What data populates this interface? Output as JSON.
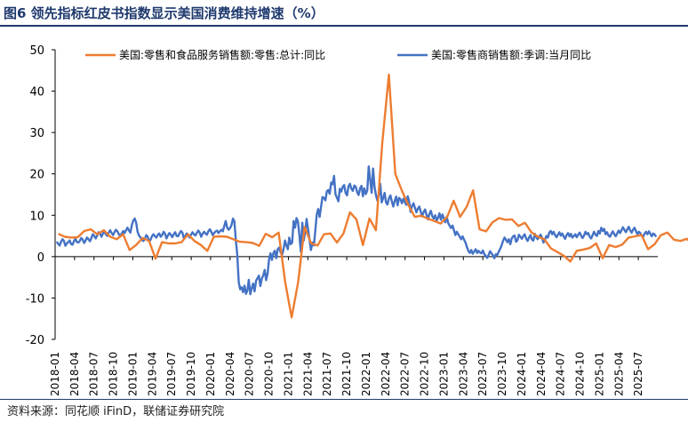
{
  "figure": {
    "title": "图6  领先指标红皮书指数显示美国消费维持增速（%）",
    "source": "资料来源：同花顺 iFinD，联储证券研究院"
  },
  "chart_data": {
    "type": "line",
    "ylim": [
      -20,
      50
    ],
    "yticks": [
      -20,
      -10,
      0,
      10,
      20,
      30,
      40,
      50
    ],
    "grid": false,
    "legend_position": "top",
    "start_month": "2018-01",
    "x_tick_labels": [
      "2018-01",
      "2018-04",
      "2018-07",
      "2018-10",
      "2019-01",
      "2019-04",
      "2019-07",
      "2019-10",
      "2020-01",
      "2020-04",
      "2020-07",
      "2020-10",
      "2021-01",
      "2021-04",
      "2021-07",
      "2021-10",
      "2022-01",
      "2022-04",
      "2022-07",
      "2022-10",
      "2023-01",
      "2023-04",
      "2023-07",
      "2023-10",
      "2024-01",
      "2024-04",
      "2024-07",
      "2024-10",
      "2025-01",
      "2025-04",
      "2025-07"
    ],
    "series": [
      {
        "name": "美国:零售和食品服务销售额:零售:总计:同比",
        "color": "#ed7d31",
        "frequency": "monthly",
        "values": [
          5.5,
          4.8,
          4.6,
          4.7,
          6.2,
          6.6,
          5.4,
          6.4,
          4.8,
          4.2,
          5.4,
          1.6,
          2.8,
          4.5,
          3.8,
          -0.5,
          3.5,
          3.2,
          3.2,
          3.5,
          5.4,
          3.8,
          2.8,
          1.4,
          4.8,
          4.9,
          4.8,
          4.2,
          3.6,
          3.5,
          3.3,
          2.6,
          5.5,
          4.7,
          5.8,
          -6.1,
          -14.7,
          -6.2,
          7.2,
          3.2,
          2.7,
          5.4,
          5.6,
          3.4,
          5.6,
          10.7,
          9.0,
          2.8,
          9.2,
          6.4,
          27.8,
          44.0,
          20.0,
          16.0,
          12.5,
          9.6,
          9.9,
          9.2,
          8.6,
          8.0,
          9.6,
          13.5,
          9.6,
          12.0,
          16.0,
          6.6,
          6.1,
          8.3,
          9.3,
          8.9,
          9.0,
          7.4,
          8.2,
          5.9,
          4.8,
          4.2,
          2.0,
          1.1,
          0.2,
          -1.2,
          1.4,
          1.7,
          2.1,
          3.2,
          -0.4,
          2.8,
          2.3,
          2.9,
          4.6,
          4.9,
          5.2,
          1.8,
          3.0,
          5.2,
          5.8,
          4.1,
          3.8,
          4.3,
          2.8,
          0.9,
          1.6,
          4.3,
          5.2,
          4.8,
          4.5,
          -0.1,
          4.5,
          3.6,
          5.1,
          2.4,
          4.1,
          5.8,
          4.7,
          5.2,
          4.8,
          3.8,
          4.3,
          3.6,
          5.0,
          2.0,
          1.8,
          3.0
        ]
      },
      {
        "name": "美国:零售商销售额:季调:当月同比",
        "color": "#4472c4",
        "frequency": "weekly",
        "values": [
          3.6,
          3.1,
          2.7,
          3.6,
          4.2,
          3.8,
          2.6,
          3.2,
          3.5,
          3.9,
          3.0,
          2.9,
          3.8,
          4.3,
          3.5,
          3.4,
          3.8,
          4.5,
          4.1,
          3.3,
          3.9,
          4.6,
          4.2,
          3.7,
          4.5,
          5.4,
          5.0,
          4.4,
          5.1,
          5.9,
          5.5,
          4.8,
          5.6,
          6.0,
          5.4,
          5.0,
          5.8,
          6.4,
          5.7,
          5.2,
          5.9,
          6.5,
          6.1,
          5.4,
          4.9,
          5.6,
          6.2,
          5.7,
          6.4,
          7.0,
          6.3,
          5.8,
          7.6,
          8.7,
          9.2,
          8.2,
          6.0,
          5.1,
          4.6,
          4.0,
          3.8,
          4.3,
          5.2,
          4.8,
          3.6,
          4.1,
          5.0,
          5.4,
          4.9,
          4.6,
          5.3,
          5.6,
          4.8,
          5.2,
          6.0,
          5.5,
          4.4,
          5.1,
          5.7,
          5.3,
          4.7,
          5.4,
          5.9,
          5.0,
          4.9,
          5.6,
          6.2,
          5.8,
          4.5,
          5.0,
          5.6,
          5.2,
          4.6,
          5.3,
          5.9,
          5.4,
          5.1,
          5.7,
          6.3,
          5.8,
          4.8,
          5.5,
          6.0,
          5.6,
          5.3,
          6.1,
          6.6,
          6.0,
          5.2,
          5.7,
          6.1,
          6.3,
          5.7,
          6.1,
          6.5,
          6.1,
          7.4,
          8.6,
          7.0,
          6.5,
          6.9,
          7.6,
          9.2,
          8.5,
          4.0,
          0.5,
          -6.2,
          -7.9,
          -7.4,
          -8.6,
          -7.0,
          -9.0,
          -8.2,
          -5.6,
          -9.1,
          -7.6,
          -6.5,
          -8.4,
          -5.8,
          -5.2,
          -4.6,
          -7.1,
          -5.3,
          -4.5,
          -3.2,
          -5.7,
          -4.0,
          -0.6,
          0.8,
          -0.8,
          0.9,
          1.4,
          -0.4,
          1.8,
          2.2,
          1.0,
          0.4,
          1.7,
          3.9,
          2.7,
          1.8,
          4.6,
          3.0,
          3.4,
          8.6,
          7.0,
          9.3,
          8.5,
          5.2,
          1.2,
          8.2,
          3.9,
          5.8,
          9.1,
          6.6,
          4.1,
          1.6,
          3.4,
          2.7,
          6.2,
          10.1,
          11.5,
          9.6,
          12.1,
          14.4,
          14.2,
          13.6,
          15.8,
          16.1,
          15.2,
          17.9,
          17.5,
          19.5,
          15.1,
          14.2,
          13.4,
          16.4,
          15.7,
          16.9,
          17.3,
          15.4,
          14.8,
          17.0,
          17.6,
          16.4,
          15.9,
          17.2,
          16.9,
          15.6,
          14.9,
          16.5,
          17.1,
          14.6,
          16.5,
          15.1,
          16.0,
          21.8,
          18.7,
          15.4,
          21.3,
          17.0,
          14.9,
          13.5,
          14.9,
          17.6,
          13.1,
          14.2,
          15.4,
          13.1,
          12.6,
          14.1,
          14.8,
          13.4,
          12.1,
          13.5,
          14.5,
          12.4,
          14.2,
          13.8,
          12.9,
          14.0,
          13.2,
          12.5,
          14.6,
          13.3,
          10.8,
          12.3,
          12.9,
          11.8,
          10.7,
          11.6,
          12.1,
          10.9,
          9.7,
          10.8,
          11.4,
          10.2,
          9.0,
          10.3,
          11.1,
          9.8,
          9.2,
          10.0,
          8.7,
          9.4,
          10.5,
          8.9,
          10.2,
          9.3,
          8.3,
          9.6,
          8.1,
          7.5,
          6.9,
          7.5,
          6.4,
          5.2,
          6.0,
          5.4,
          4.8,
          4.2,
          4.9,
          4.1,
          3.4,
          2.3,
          1.4,
          0.9,
          1.6,
          0.7,
          1.2,
          1.8,
          0.9,
          1.4,
          1.0,
          0.8,
          1.5,
          0.6,
          0.2,
          -0.3,
          0.4,
          1.3,
          0.8,
          0.3,
          -0.4,
          0.6,
          0.4,
          1.2,
          1.9,
          2.7,
          3.8,
          4.6,
          4.1,
          3.5,
          4.2,
          3.0,
          4.4,
          4.9,
          5.1,
          3.6,
          4.0,
          5.3,
          4.8,
          4.3,
          5.0,
          5.4,
          4.4,
          3.8,
          4.6,
          5.2,
          4.1,
          3.9,
          5.5,
          4.7,
          4.2,
          4.9,
          5.3,
          4.5,
          3.4,
          4.1,
          5.0,
          4.6,
          5.8,
          6.2,
          5.4,
          6.0,
          5.2,
          4.7,
          5.3,
          5.9,
          5.1,
          5.6,
          4.8,
          4.3,
          5.2,
          5.7,
          4.9,
          5.5,
          4.6,
          5.0,
          5.4,
          4.7,
          5.3,
          5.8,
          5.1,
          4.5,
          5.0,
          6.0,
          5.4,
          5.7,
          4.8,
          4.4,
          5.2,
          6.0,
          5.3,
          5.0,
          6.2,
          5.6,
          7.0,
          6.2,
          6.7,
          5.4,
          5.9,
          5.1,
          4.8,
          5.5,
          6.1,
          5.4,
          4.9,
          5.6,
          6.3,
          5.7,
          6.4,
          7.1,
          6.5,
          5.9,
          6.6,
          7.2,
          6.4,
          5.8,
          6.5,
          7.0,
          6.2,
          5.4,
          6.0,
          5.7,
          5.1,
          4.8,
          5.6,
          6.0,
          5.4,
          6.1,
          5.5,
          4.9,
          5.6,
          5.3,
          4.8
        ]
      }
    ]
  }
}
